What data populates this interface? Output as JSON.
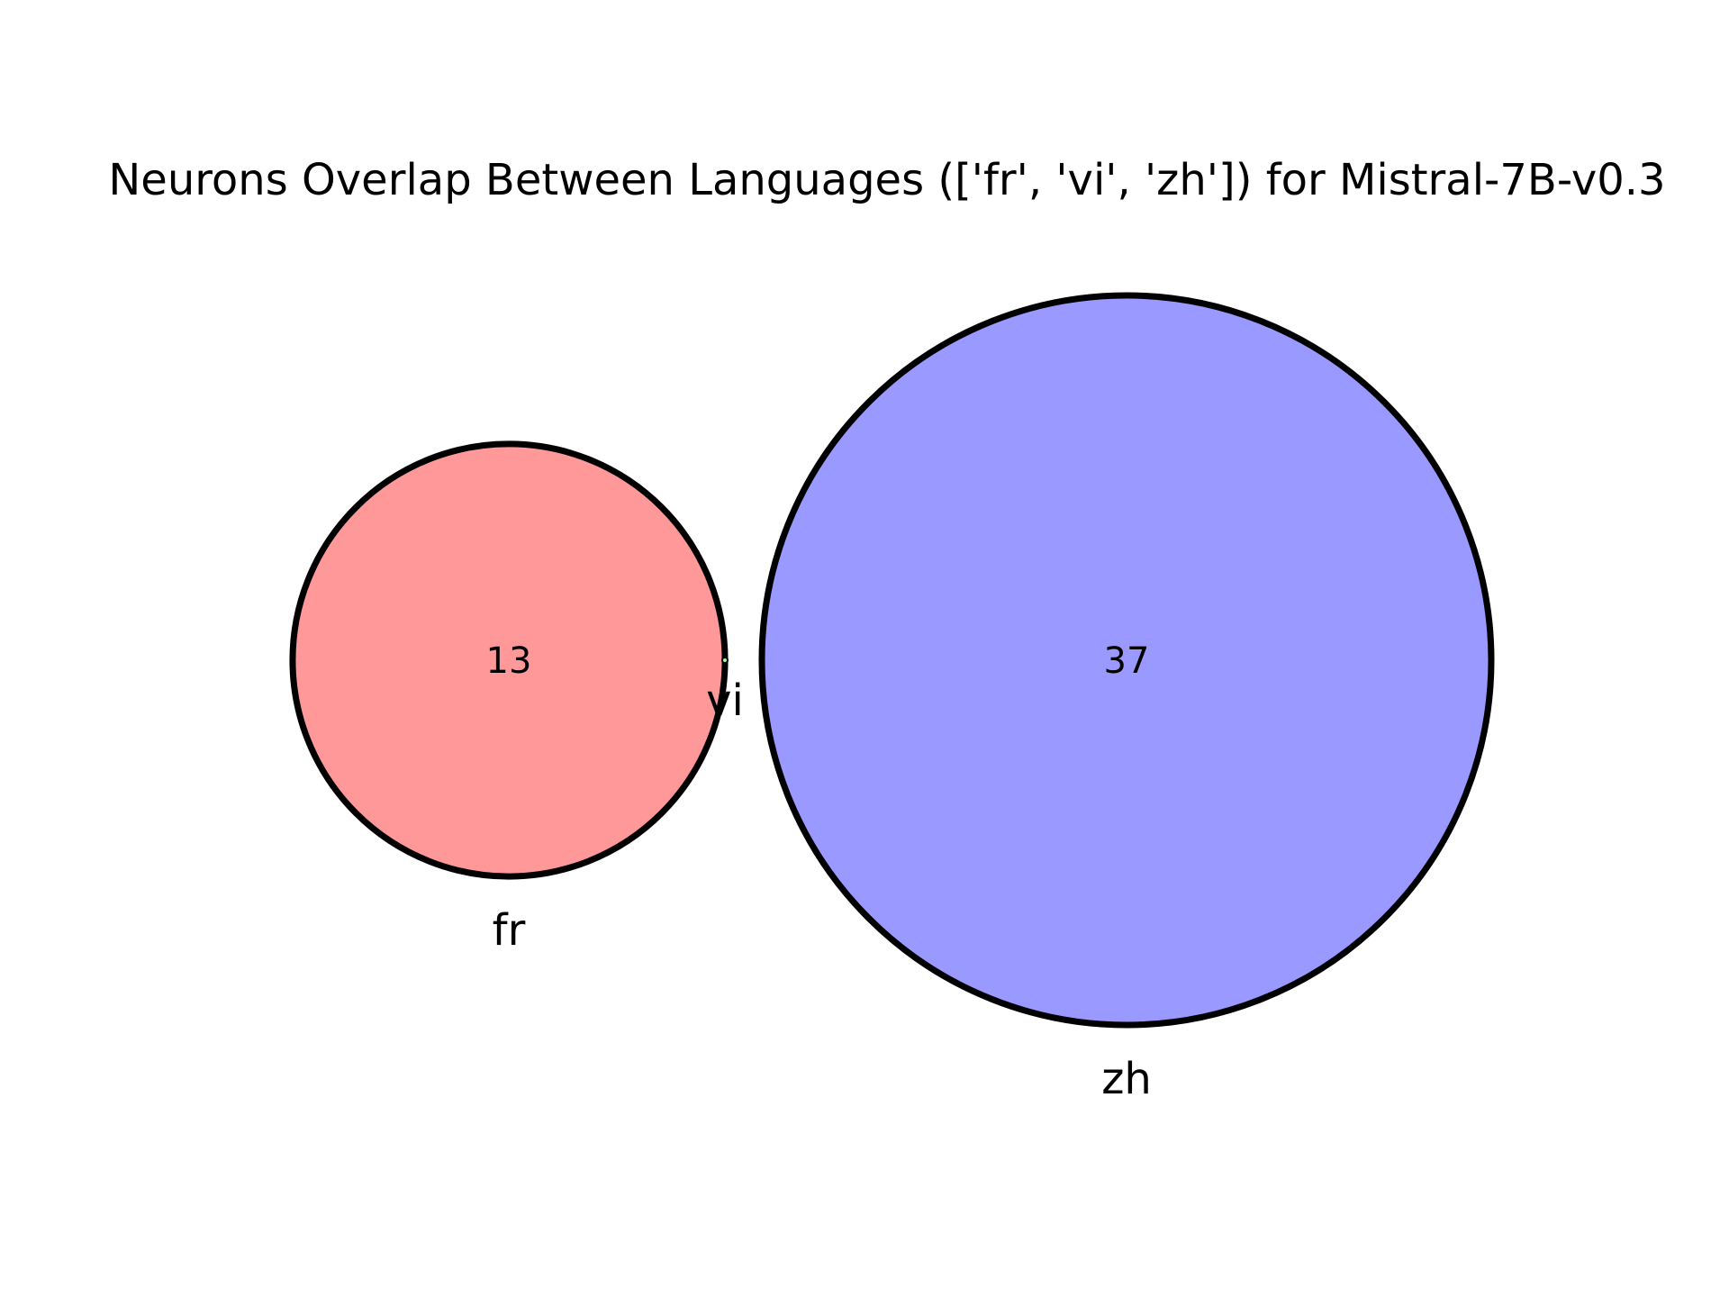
{
  "chart_data": {
    "type": "venn",
    "title": "Neurons Overlap Between Languages (['fr', 'vi', 'zh']) for Mistral-7B-v0.3",
    "sets": [
      {
        "name": "fr",
        "size": 13,
        "color": "#ff9999"
      },
      {
        "name": "vi",
        "size": 0,
        "color": "#99ff99"
      },
      {
        "name": "zh",
        "size": 37,
        "color": "#9999ff"
      }
    ],
    "regions": [
      {
        "sets": [
          "fr"
        ],
        "value": 13,
        "label": "13"
      },
      {
        "sets": [
          "zh"
        ],
        "value": 37,
        "label": "37"
      }
    ],
    "outline_color": "#000000"
  }
}
